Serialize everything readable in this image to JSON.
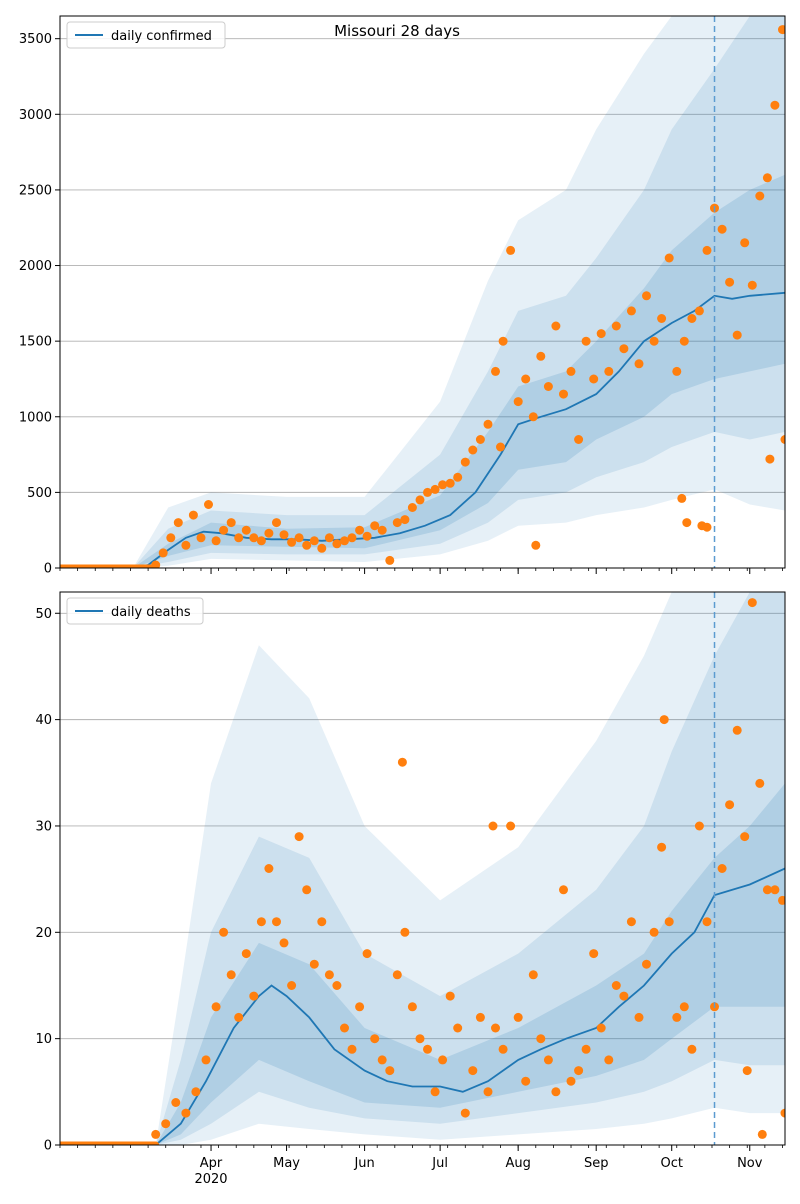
{
  "chart_data": [
    {
      "type": "line",
      "title": "Missouri 28 days",
      "legend": {
        "label": "daily confirmed",
        "placement": "top-left"
      },
      "ylim": [
        0,
        3650
      ],
      "yticks": [
        0,
        500,
        1000,
        1500,
        2000,
        2500,
        3000,
        3500
      ],
      "grid": "horizontal",
      "colors": {
        "line": "#1f77b4",
        "points": "#ff7f0e",
        "band": "#1f77b4"
      },
      "x_start": "2020-02-01",
      "x_end": "2020-11-15",
      "vline": "2020-10-18",
      "series": [
        {
          "name": "daily confirmed",
          "kind": "median",
          "x": [
            "2020-02-01",
            "2020-03-01",
            "2020-03-07",
            "2020-03-15",
            "2020-03-22",
            "2020-03-29",
            "2020-04-05",
            "2020-04-15",
            "2020-04-25",
            "2020-05-05",
            "2020-05-15",
            "2020-05-25",
            "2020-06-05",
            "2020-06-15",
            "2020-06-25",
            "2020-07-05",
            "2020-07-15",
            "2020-07-25",
            "2020-08-01",
            "2020-08-10",
            "2020-08-20",
            "2020-09-01",
            "2020-09-10",
            "2020-09-20",
            "2020-10-01",
            "2020-10-10",
            "2020-10-18",
            "2020-10-25",
            "2020-11-01",
            "2020-11-15"
          ],
          "y": [
            0,
            0,
            20,
            120,
            200,
            240,
            230,
            200,
            190,
            190,
            180,
            190,
            200,
            230,
            280,
            350,
            500,
            750,
            950,
            1000,
            1050,
            1150,
            1300,
            1500,
            1620,
            1700,
            1800,
            1780,
            1800,
            1820
          ]
        },
        {
          "name": "band 50%",
          "kind": "band",
          "x": [
            "2020-02-01",
            "2020-03-01",
            "2020-03-15",
            "2020-04-01",
            "2020-05-01",
            "2020-06-01",
            "2020-07-01",
            "2020-07-20",
            "2020-08-01",
            "2020-08-20",
            "2020-09-01",
            "2020-09-20",
            "2020-10-01",
            "2020-10-18",
            "2020-11-01",
            "2020-11-15"
          ],
          "low": [
            0,
            0,
            80,
            150,
            140,
            130,
            250,
            430,
            650,
            700,
            850,
            1000,
            1150,
            1250,
            1300,
            1350
          ],
          "high": [
            0,
            0,
            160,
            300,
            260,
            270,
            480,
            900,
            1200,
            1300,
            1500,
            1850,
            2100,
            2350,
            2500,
            2600
          ]
        },
        {
          "name": "band 80%",
          "kind": "band",
          "x": [
            "2020-02-01",
            "2020-03-01",
            "2020-03-15",
            "2020-04-01",
            "2020-05-01",
            "2020-06-01",
            "2020-07-01",
            "2020-07-20",
            "2020-08-01",
            "2020-08-20",
            "2020-09-01",
            "2020-09-20",
            "2020-10-01",
            "2020-10-18",
            "2020-11-01",
            "2020-11-15"
          ],
          "low": [
            0,
            0,
            40,
            100,
            90,
            90,
            160,
            300,
            450,
            500,
            600,
            700,
            800,
            900,
            850,
            900
          ],
          "high": [
            0,
            0,
            260,
            380,
            350,
            350,
            750,
            1300,
            1700,
            1800,
            2050,
            2500,
            2900,
            3300,
            3650,
            3650
          ]
        },
        {
          "name": "band 95%",
          "kind": "band",
          "x": [
            "2020-02-01",
            "2020-03-01",
            "2020-03-15",
            "2020-04-01",
            "2020-05-01",
            "2020-06-01",
            "2020-07-01",
            "2020-07-20",
            "2020-08-01",
            "2020-08-20",
            "2020-09-01",
            "2020-09-20",
            "2020-10-01",
            "2020-10-18",
            "2020-11-01",
            "2020-11-15"
          ],
          "low": [
            0,
            0,
            15,
            60,
            50,
            40,
            90,
            180,
            280,
            300,
            350,
            400,
            450,
            520,
            420,
            380
          ],
          "high": [
            0,
            0,
            400,
            500,
            470,
            470,
            1100,
            1900,
            2300,
            2500,
            2900,
            3400,
            3650,
            3650,
            3650,
            3650
          ]
        },
        {
          "name": "observed",
          "kind": "scatter",
          "x": [
            "2020-03-10",
            "2020-03-13",
            "2020-03-16",
            "2020-03-19",
            "2020-03-22",
            "2020-03-25",
            "2020-03-28",
            "2020-03-31",
            "2020-04-03",
            "2020-04-06",
            "2020-04-09",
            "2020-04-12",
            "2020-04-15",
            "2020-04-18",
            "2020-04-21",
            "2020-04-24",
            "2020-04-27",
            "2020-04-30",
            "2020-05-03",
            "2020-05-06",
            "2020-05-09",
            "2020-05-12",
            "2020-05-15",
            "2020-05-18",
            "2020-05-21",
            "2020-05-24",
            "2020-05-27",
            "2020-05-30",
            "2020-06-02",
            "2020-06-05",
            "2020-06-08",
            "2020-06-11",
            "2020-06-14",
            "2020-06-17",
            "2020-06-20",
            "2020-06-23",
            "2020-06-26",
            "2020-06-29",
            "2020-07-02",
            "2020-07-05",
            "2020-07-08",
            "2020-07-11",
            "2020-07-14",
            "2020-07-17",
            "2020-07-20",
            "2020-07-23",
            "2020-07-26",
            "2020-07-29",
            "2020-08-01",
            "2020-08-04",
            "2020-08-07",
            "2020-08-10",
            "2020-08-13",
            "2020-08-16",
            "2020-08-19",
            "2020-08-22",
            "2020-08-25",
            "2020-08-28",
            "2020-08-31",
            "2020-09-03",
            "2020-09-06",
            "2020-09-09",
            "2020-09-12",
            "2020-09-15",
            "2020-09-18",
            "2020-09-21",
            "2020-09-24",
            "2020-09-27",
            "2020-09-30",
            "2020-10-03",
            "2020-10-06",
            "2020-10-09",
            "2020-10-12",
            "2020-10-15",
            "2020-10-18",
            "2020-10-21",
            "2020-10-24",
            "2020-10-27",
            "2020-10-30",
            "2020-11-02",
            "2020-11-05",
            "2020-11-08",
            "2020-11-11",
            "2020-11-14",
            "2020-07-25",
            "2020-08-08",
            "2020-10-05",
            "2020-10-07",
            "2020-10-13",
            "2020-10-15",
            "2020-11-09",
            "2020-11-15"
          ],
          "y": [
            20,
            100,
            200,
            300,
            150,
            350,
            200,
            420,
            180,
            250,
            300,
            200,
            250,
            200,
            180,
            230,
            300,
            220,
            170,
            200,
            150,
            180,
            130,
            200,
            160,
            180,
            200,
            250,
            210,
            280,
            250,
            50,
            300,
            320,
            400,
            450,
            500,
            520,
            550,
            560,
            600,
            700,
            780,
            850,
            950,
            1300,
            1500,
            2100,
            1100,
            1250,
            1000,
            1400,
            1200,
            1600,
            1150,
            1300,
            850,
            1500,
            1250,
            1550,
            1300,
            1600,
            1450,
            1700,
            1350,
            1800,
            1500,
            1650,
            2050,
            1300,
            1500,
            1650,
            1700,
            2100,
            2380,
            2240,
            1890,
            1540,
            2150,
            1870,
            2460,
            2580,
            3060,
            3560,
            800,
            150,
            460,
            300,
            280,
            270,
            720,
            850
          ]
        }
      ]
    },
    {
      "type": "line",
      "title": "",
      "legend": {
        "label": "daily deaths",
        "placement": "top-left"
      },
      "ylim": [
        0,
        52
      ],
      "yticks": [
        0,
        10,
        20,
        30,
        40,
        50
      ],
      "grid": "horizontal",
      "colors": {
        "line": "#1f77b4",
        "points": "#ff7f0e",
        "band": "#1f77b4"
      },
      "x_start": "2020-02-01",
      "x_end": "2020-11-15",
      "vline": "2020-10-18",
      "xtick_labels": [
        "Apr",
        "May",
        "Jun",
        "Jul",
        "Aug",
        "Sep",
        "Oct",
        "Nov"
      ],
      "xtick_dates": [
        "2020-04-01",
        "2020-05-01",
        "2020-06-01",
        "2020-07-01",
        "2020-08-01",
        "2020-09-01",
        "2020-10-01",
        "2020-11-01"
      ],
      "year_label": "2020",
      "series": [
        {
          "name": "daily deaths",
          "kind": "median",
          "x": [
            "2020-02-01",
            "2020-03-10",
            "2020-03-20",
            "2020-03-30",
            "2020-04-10",
            "2020-04-20",
            "2020-04-25",
            "2020-05-01",
            "2020-05-10",
            "2020-05-20",
            "2020-06-01",
            "2020-06-10",
            "2020-06-20",
            "2020-07-01",
            "2020-07-10",
            "2020-07-20",
            "2020-08-01",
            "2020-08-10",
            "2020-08-20",
            "2020-09-01",
            "2020-09-10",
            "2020-09-20",
            "2020-10-01",
            "2020-10-10",
            "2020-10-18",
            "2020-11-01",
            "2020-11-15"
          ],
          "y": [
            0,
            0,
            2,
            6,
            11,
            14,
            15,
            14,
            12,
            9,
            7,
            6,
            5.5,
            5.5,
            5,
            6,
            8,
            9,
            10,
            11,
            13,
            15,
            18,
            20,
            23.5,
            24.5,
            26
          ]
        },
        {
          "name": "band 50%",
          "kind": "band",
          "x": [
            "2020-02-01",
            "2020-03-10",
            "2020-03-20",
            "2020-04-01",
            "2020-04-20",
            "2020-05-10",
            "2020-06-01",
            "2020-07-01",
            "2020-08-01",
            "2020-09-01",
            "2020-09-20",
            "2020-10-01",
            "2020-10-18",
            "2020-11-01",
            "2020-11-15"
          ],
          "low": [
            0,
            0,
            1,
            4,
            8,
            6,
            4,
            3.5,
            5,
            6.5,
            8,
            10,
            13,
            13,
            13
          ],
          "high": [
            0,
            0,
            4,
            12,
            19,
            17,
            11,
            8,
            11,
            15,
            18,
            22,
            27,
            30,
            34
          ]
        },
        {
          "name": "band 80%",
          "kind": "band",
          "x": [
            "2020-02-01",
            "2020-03-10",
            "2020-03-20",
            "2020-04-01",
            "2020-04-20",
            "2020-05-10",
            "2020-06-01",
            "2020-07-01",
            "2020-08-01",
            "2020-09-01",
            "2020-09-20",
            "2020-10-01",
            "2020-10-18",
            "2020-11-01",
            "2020-11-15"
          ],
          "low": [
            0,
            0,
            0.5,
            2,
            5,
            3.5,
            2.5,
            2,
            3,
            4,
            5,
            6,
            8,
            7.5,
            7.5
          ],
          "high": [
            0,
            0,
            8,
            20,
            29,
            27,
            18,
            14,
            18,
            24,
            30,
            37,
            46,
            52,
            52
          ]
        },
        {
          "name": "band 95%",
          "kind": "band",
          "x": [
            "2020-02-01",
            "2020-03-10",
            "2020-03-20",
            "2020-04-01",
            "2020-04-20",
            "2020-05-10",
            "2020-06-01",
            "2020-07-01",
            "2020-08-01",
            "2020-09-01",
            "2020-09-20",
            "2020-10-01",
            "2020-10-18",
            "2020-11-01",
            "2020-11-15"
          ],
          "low": [
            0,
            0,
            0,
            0.5,
            2,
            1.5,
            1,
            0.5,
            1,
            1.5,
            2,
            2.5,
            3.5,
            3,
            3
          ],
          "high": [
            0,
            0,
            15,
            34,
            47,
            42,
            30,
            23,
            28,
            38,
            46,
            52,
            52,
            52,
            52
          ]
        },
        {
          "name": "observed",
          "kind": "scatter",
          "x": [
            "2020-03-10",
            "2020-03-14",
            "2020-03-18",
            "2020-03-22",
            "2020-03-26",
            "2020-03-30",
            "2020-04-03",
            "2020-04-06",
            "2020-04-09",
            "2020-04-12",
            "2020-04-15",
            "2020-04-18",
            "2020-04-21",
            "2020-04-24",
            "2020-04-27",
            "2020-04-30",
            "2020-05-03",
            "2020-05-06",
            "2020-05-09",
            "2020-05-12",
            "2020-05-15",
            "2020-05-18",
            "2020-05-21",
            "2020-05-24",
            "2020-05-27",
            "2020-05-30",
            "2020-06-02",
            "2020-06-05",
            "2020-06-08",
            "2020-06-11",
            "2020-06-14",
            "2020-06-17",
            "2020-06-20",
            "2020-06-23",
            "2020-06-26",
            "2020-06-29",
            "2020-07-02",
            "2020-07-05",
            "2020-07-08",
            "2020-07-11",
            "2020-07-14",
            "2020-07-17",
            "2020-07-20",
            "2020-07-23",
            "2020-07-26",
            "2020-07-29",
            "2020-08-01",
            "2020-08-04",
            "2020-08-07",
            "2020-08-10",
            "2020-08-13",
            "2020-08-16",
            "2020-08-19",
            "2020-08-22",
            "2020-08-25",
            "2020-08-28",
            "2020-08-31",
            "2020-09-03",
            "2020-09-06",
            "2020-09-09",
            "2020-09-12",
            "2020-09-15",
            "2020-09-18",
            "2020-09-21",
            "2020-09-24",
            "2020-09-27",
            "2020-09-30",
            "2020-10-03",
            "2020-10-06",
            "2020-10-09",
            "2020-10-12",
            "2020-10-15",
            "2020-10-18",
            "2020-10-21",
            "2020-10-24",
            "2020-10-27",
            "2020-10-30",
            "2020-11-02",
            "2020-11-05",
            "2020-11-08",
            "2020-11-11",
            "2020-11-14",
            "2020-06-16",
            "2020-07-22",
            "2020-09-28",
            "2020-10-31",
            "2020-11-06",
            "2020-11-15"
          ],
          "y": [
            1,
            2,
            4,
            3,
            5,
            8,
            13,
            20,
            16,
            12,
            18,
            14,
            21,
            26,
            21,
            19,
            15,
            29,
            24,
            17,
            21,
            16,
            15,
            11,
            9,
            13,
            18,
            10,
            8,
            7,
            16,
            20,
            13,
            10,
            9,
            5,
            8,
            14,
            11,
            3,
            7,
            12,
            5,
            11,
            9,
            30,
            12,
            6,
            16,
            10,
            8,
            5,
            24,
            6,
            7,
            9,
            18,
            11,
            8,
            15,
            14,
            21,
            12,
            17,
            20,
            28,
            21,
            12,
            13,
            9,
            30,
            21,
            13,
            26,
            32,
            39,
            29,
            51,
            34,
            24,
            24,
            23,
            36,
            30,
            40,
            7,
            1,
            3
          ]
        }
      ]
    }
  ]
}
